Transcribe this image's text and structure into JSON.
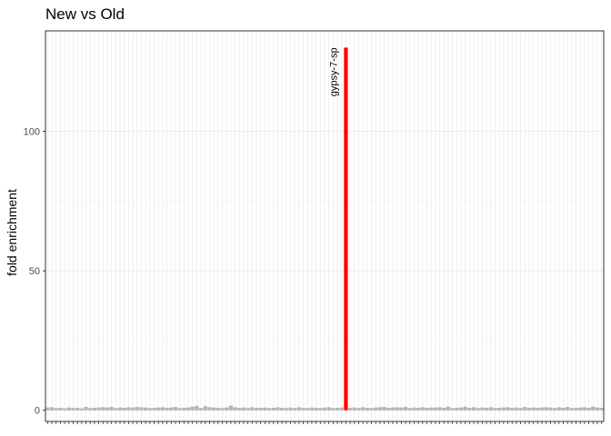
{
  "chart_data": {
    "type": "bar",
    "title": "New vs Old",
    "xlabel": "",
    "ylabel": "fold enrichment",
    "ylim": [
      -4,
      136
    ],
    "yticks": [
      0,
      50,
      100
    ],
    "grid": true,
    "legend": "none",
    "colors": {
      "default_bar": "#b3b3b3",
      "highlight_bar": "#ff0000",
      "grid_major": "#ebebeb",
      "grid_minor": "#f4f4f4",
      "panel_border": "#333333",
      "axis_text": "#4d4d4d"
    },
    "highlight_index": 70,
    "annotation": "gypsy-7-sp",
    "values": [
      1.0,
      1.1,
      0.8,
      0.9,
      0.7,
      1.0,
      0.8,
      0.9,
      0.7,
      1.2,
      0.8,
      0.9,
      1.0,
      1.1,
      1.0,
      1.2,
      0.8,
      1.0,
      0.9,
      1.1,
      1.0,
      1.2,
      1.1,
      1.0,
      0.8,
      0.9,
      1.0,
      1.1,
      0.9,
      1.0,
      1.2,
      0.8,
      0.9,
      1.0,
      1.3,
      1.6,
      0.8,
      1.5,
      1.1,
      1.0,
      0.9,
      0.8,
      1.0,
      1.7,
      1.1,
      0.9,
      1.0,
      0.8,
      1.1,
      0.9,
      0.9,
      1.0,
      0.8,
      0.9,
      1.1,
      0.9,
      0.8,
      1.0,
      0.8,
      1.1,
      0.9,
      0.8,
      1.0,
      0.9,
      0.8,
      1.0,
      1.1,
      0.8,
      0.9,
      1.0,
      130.0,
      0.9,
      1.0,
      0.8,
      1.1,
      0.9,
      0.8,
      1.0,
      1.1,
      1.2,
      0.9,
      1.0,
      1.1,
      1.0,
      1.2,
      0.8,
      1.0,
      0.9,
      1.1,
      0.9,
      1.0,
      1.0,
      1.1,
      0.9,
      1.3,
      0.8,
      0.9,
      1.0,
      1.3,
      0.9,
      1.1,
      0.8,
      1.0,
      0.9,
      1.1,
      0.8,
      0.9,
      1.0,
      1.1,
      0.9,
      1.0,
      0.8,
      1.2,
      0.9,
      1.0,
      0.9,
      1.0,
      1.1,
      1.0,
      0.8,
      1.1,
      0.9,
      1.2,
      0.8,
      0.9,
      1.0,
      1.1,
      0.9,
      1.3,
      1.0,
      0.9
    ]
  }
}
